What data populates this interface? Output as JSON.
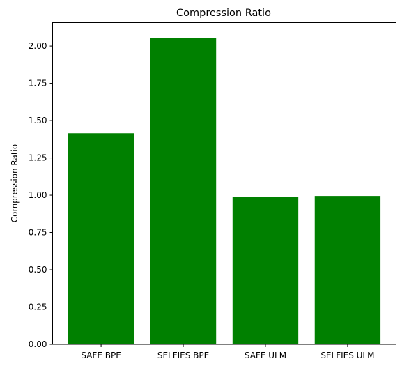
{
  "chart_data": {
    "type": "bar",
    "title": "Compression Ratio",
    "xlabel": "",
    "ylabel": "Compression Ratio",
    "categories": [
      "SAFE BPE",
      "SELFIES BPE",
      "SAFE ULM",
      "SELFIES ULM"
    ],
    "values": [
      1.415,
      2.055,
      0.99,
      0.995
    ],
    "ylim": [
      0,
      2.157
    ],
    "yticks": [
      0.0,
      0.25,
      0.5,
      0.75,
      1.0,
      1.25,
      1.5,
      1.75,
      2.0
    ],
    "ytick_labels": [
      "0.00",
      "0.25",
      "0.50",
      "0.75",
      "1.00",
      "1.25",
      "1.50",
      "1.75",
      "2.00"
    ],
    "grid": false,
    "legend": "none",
    "colors": {
      "bar": "#008000",
      "axis": "#000000",
      "background": "#ffffff"
    }
  }
}
